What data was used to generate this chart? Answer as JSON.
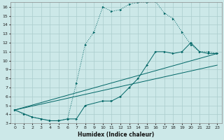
{
  "xlabel": "Humidex (Indice chaleur)",
  "background_color": "#cce8e8",
  "grid_color": "#aacccc",
  "line_color": "#006666",
  "xlim": [
    -0.5,
    23.5
  ],
  "ylim": [
    3,
    16.5
  ],
  "xticks": [
    0,
    1,
    2,
    3,
    4,
    5,
    6,
    7,
    8,
    9,
    10,
    11,
    12,
    13,
    14,
    15,
    16,
    17,
    18,
    19,
    20,
    21,
    22,
    23
  ],
  "yticks": [
    3,
    4,
    5,
    6,
    7,
    8,
    9,
    10,
    11,
    12,
    13,
    14,
    15,
    16
  ],
  "line1_x": [
    0,
    1,
    2,
    3,
    4,
    5,
    6,
    7,
    8,
    9,
    10,
    11,
    12,
    13,
    14,
    15,
    16,
    17,
    18,
    19,
    20,
    21,
    22,
    23
  ],
  "line1_y": [
    4.5,
    4.0,
    3.7,
    3.5,
    3.3,
    3.3,
    3.5,
    7.5,
    11.8,
    13.2,
    16.0,
    15.5,
    15.7,
    16.3,
    16.5,
    16.5,
    16.6,
    15.3,
    14.7,
    13.2,
    11.8,
    11.0,
    11.0,
    10.8
  ],
  "line2_x": [
    0,
    2,
    3,
    4,
    5,
    6,
    7,
    8,
    10,
    11,
    12,
    13,
    14,
    15,
    16,
    17,
    18,
    19,
    20,
    21,
    22,
    23
  ],
  "line2_y": [
    4.5,
    3.7,
    3.5,
    3.3,
    3.3,
    3.5,
    3.5,
    5.0,
    5.5,
    5.5,
    6.0,
    7.0,
    8.0,
    9.5,
    11.0,
    11.0,
    10.8,
    11.0,
    12.0,
    11.0,
    10.8,
    10.8
  ],
  "line3_x": [
    0,
    23
  ],
  "line3_y": [
    4.5,
    10.8
  ],
  "line4_x": [
    0,
    23
  ],
  "line4_y": [
    4.5,
    9.5
  ]
}
